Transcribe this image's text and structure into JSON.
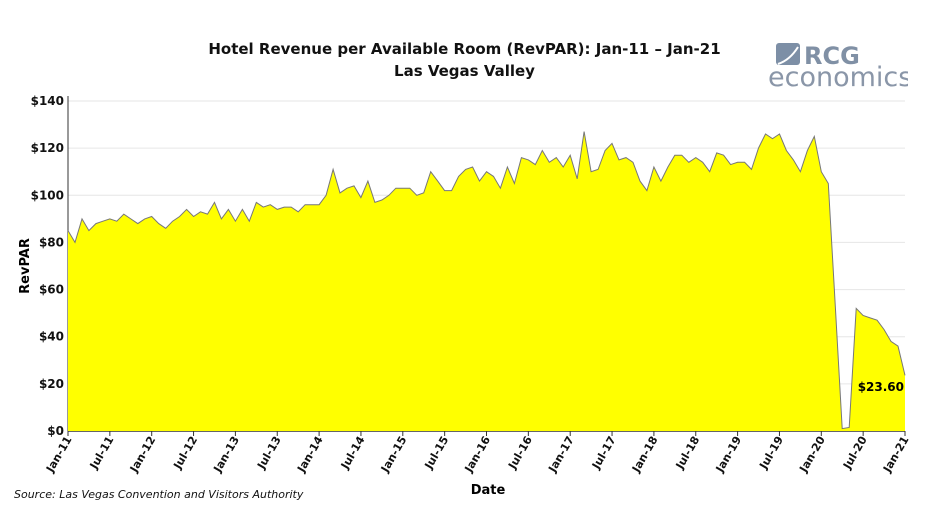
{
  "source": "Source: Las Vegas Convention and Visitors Authority",
  "logo": {
    "line1": "RCG",
    "line2": "economics"
  },
  "chart_data": {
    "type": "area",
    "title": "Hotel Revenue per Available Room (RevPAR): Jan-11 – Jan-21",
    "subtitle": "Las Vegas Valley",
    "xlabel": "Date",
    "ylabel": "RevPAR",
    "ylim": [
      0,
      140
    ],
    "yticks": [
      0,
      20,
      40,
      60,
      80,
      100,
      120,
      140
    ],
    "ytick_labels": [
      "$0",
      "$20",
      "$40",
      "$60",
      "$80",
      "$100",
      "$120",
      "$140"
    ],
    "xtick_labels": [
      "Jan-11",
      "Jul-11",
      "Jan-12",
      "Jul-12",
      "Jan-13",
      "Jul-13",
      "Jan-14",
      "Jul-14",
      "Jan-15",
      "Jul-15",
      "Jan-16",
      "Jul-16",
      "Jan-17",
      "Jul-17",
      "Jan-18",
      "Jul-18",
      "Jan-19",
      "Jul-19",
      "Jan-20",
      "Jul-20",
      "Jan-21"
    ],
    "grid": true,
    "fill_color": "#ffff00",
    "line_color": "#777777",
    "annotation": "$23.60",
    "x_start": "Jan-11",
    "x_frequency": "monthly",
    "values": [
      85,
      80,
      90,
      85,
      88,
      89,
      90,
      89,
      92,
      90,
      88,
      90,
      91,
      88,
      86,
      89,
      91,
      94,
      91,
      93,
      92,
      97,
      90,
      94,
      89,
      94,
      89,
      97,
      95,
      96,
      94,
      95,
      95,
      93,
      96,
      96,
      96,
      100,
      111,
      101,
      103,
      104,
      99,
      106,
      97,
      98,
      100,
      103,
      103,
      103,
      100,
      101,
      110,
      106,
      102,
      102,
      108,
      111,
      112,
      106,
      110,
      108,
      103,
      112,
      105,
      116,
      115,
      113,
      119,
      114,
      116,
      112,
      117,
      107,
      127,
      110,
      111,
      119,
      122,
      115,
      116,
      114,
      106,
      102,
      112,
      106,
      112,
      117,
      117,
      114,
      116,
      114,
      110,
      118,
      117,
      113,
      114,
      114,
      111,
      120,
      126,
      124,
      126,
      119,
      115,
      110,
      119,
      125,
      110,
      105,
      53,
      1,
      1.5,
      52,
      49,
      48,
      47,
      43,
      38,
      36,
      23.6
    ]
  }
}
